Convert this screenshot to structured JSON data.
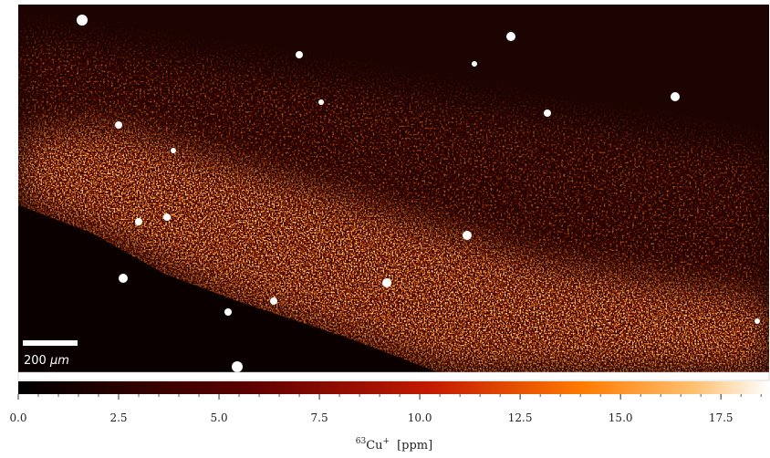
{
  "chart_data": {
    "type": "colormap-image",
    "scalebar": {
      "value": 200,
      "unit": "μm"
    },
    "colorbar": {
      "xlim": [
        0,
        18.7
      ],
      "xticks": [
        {
          "value": 0,
          "label": "0.0"
        },
        2.5,
        {
          "value": 5,
          "label": "5.0"
        },
        7.5,
        {
          "value": 10,
          "label": "10.0"
        },
        12.5,
        {
          "value": 15,
          "label": "15.0"
        },
        17.5
      ],
      "xminor": 0.5,
      "xlabel": {
        "mass": "63",
        "element": "Cu",
        "charge": "+",
        "unit": "[ppm]"
      }
    }
  }
}
